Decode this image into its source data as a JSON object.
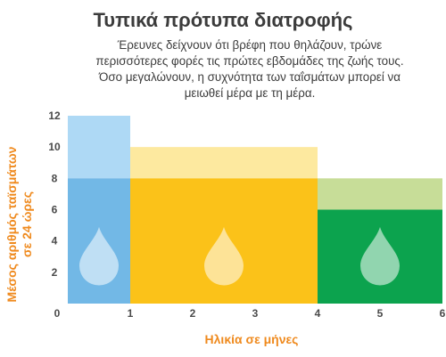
{
  "title": "Τυπικά πρότυπα διατροφής",
  "subtitle_lines": [
    "Έρευνες δείχνουν ότι βρέφη που θηλάζουν, τρώνε",
    "περισσότερες φορές τις πρώτες εβδομάδες της ζωής τους.",
    "Όσο μεγαλώνουν, η συχνότητα των ταΐσμάτων μπορεί να",
    "μειωθεί μέρα με τη μέρα."
  ],
  "colors": {
    "text": "#3c3c3c",
    "axis_title": "#ef8a1e",
    "tick": "#4a4a4a",
    "drop": "rgba(255,255,255,0.55)"
  },
  "chart_data": {
    "type": "bar",
    "xlabel": "Ηλικία σε μήνες",
    "ylabel_lines": [
      "Μέσος αριθμός ταϊσμάτων",
      "σε 24 ώρες"
    ],
    "xlim": [
      0,
      6
    ],
    "ylim": [
      0,
      12
    ],
    "x_ticks": [
      0,
      1,
      2,
      3,
      4,
      5,
      6
    ],
    "y_ticks": [
      2,
      4,
      6,
      8,
      10,
      12
    ],
    "grid": false,
    "bars": [
      {
        "x_start": 0,
        "x_end": 1,
        "min": 8,
        "max": 12,
        "color_dark": "#72b8e6",
        "color_light": "#aed9f5"
      },
      {
        "x_start": 1,
        "x_end": 4,
        "min": 8,
        "max": 10,
        "color_dark": "#fbc219",
        "color_light": "#fde99f"
      },
      {
        "x_start": 4,
        "x_end": 6,
        "min": 6,
        "max": 8,
        "color_dark": "#0ca34e",
        "color_light": "#c7dd98"
      }
    ]
  }
}
